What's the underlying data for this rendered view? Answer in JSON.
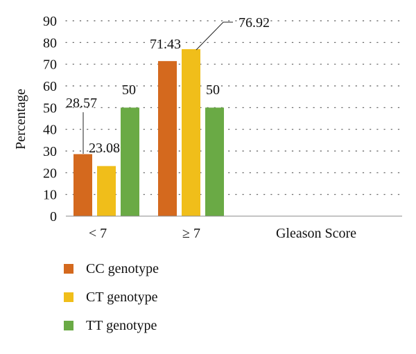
{
  "chart_data": {
    "type": "bar",
    "categories": [
      "< 7",
      "≥ 7",
      "Gleason Score"
    ],
    "series": [
      {
        "name": "CC genotype",
        "color": "#D4691E",
        "values": [
          28.57,
          71.43,
          null
        ]
      },
      {
        "name": "CT genotype",
        "color": "#F0BE1A",
        "values": [
          23.08,
          76.92,
          null
        ]
      },
      {
        "name": "TT genotype",
        "color": "#6AAA45",
        "values": [
          50,
          50,
          null
        ]
      }
    ],
    "data_labels": [
      [
        "28.57",
        "71.43",
        ""
      ],
      [
        "23.08",
        "76.92",
        ""
      ],
      [
        "50",
        "50",
        ""
      ]
    ],
    "ylabel": "Percentage",
    "xlabel": "",
    "title": "",
    "ylim": [
      0,
      90
    ],
    "yticks": [
      0,
      10,
      20,
      30,
      40,
      50,
      60,
      70,
      80,
      90
    ],
    "grid": "horizontal dotted",
    "legend_position": "bottom-left"
  }
}
